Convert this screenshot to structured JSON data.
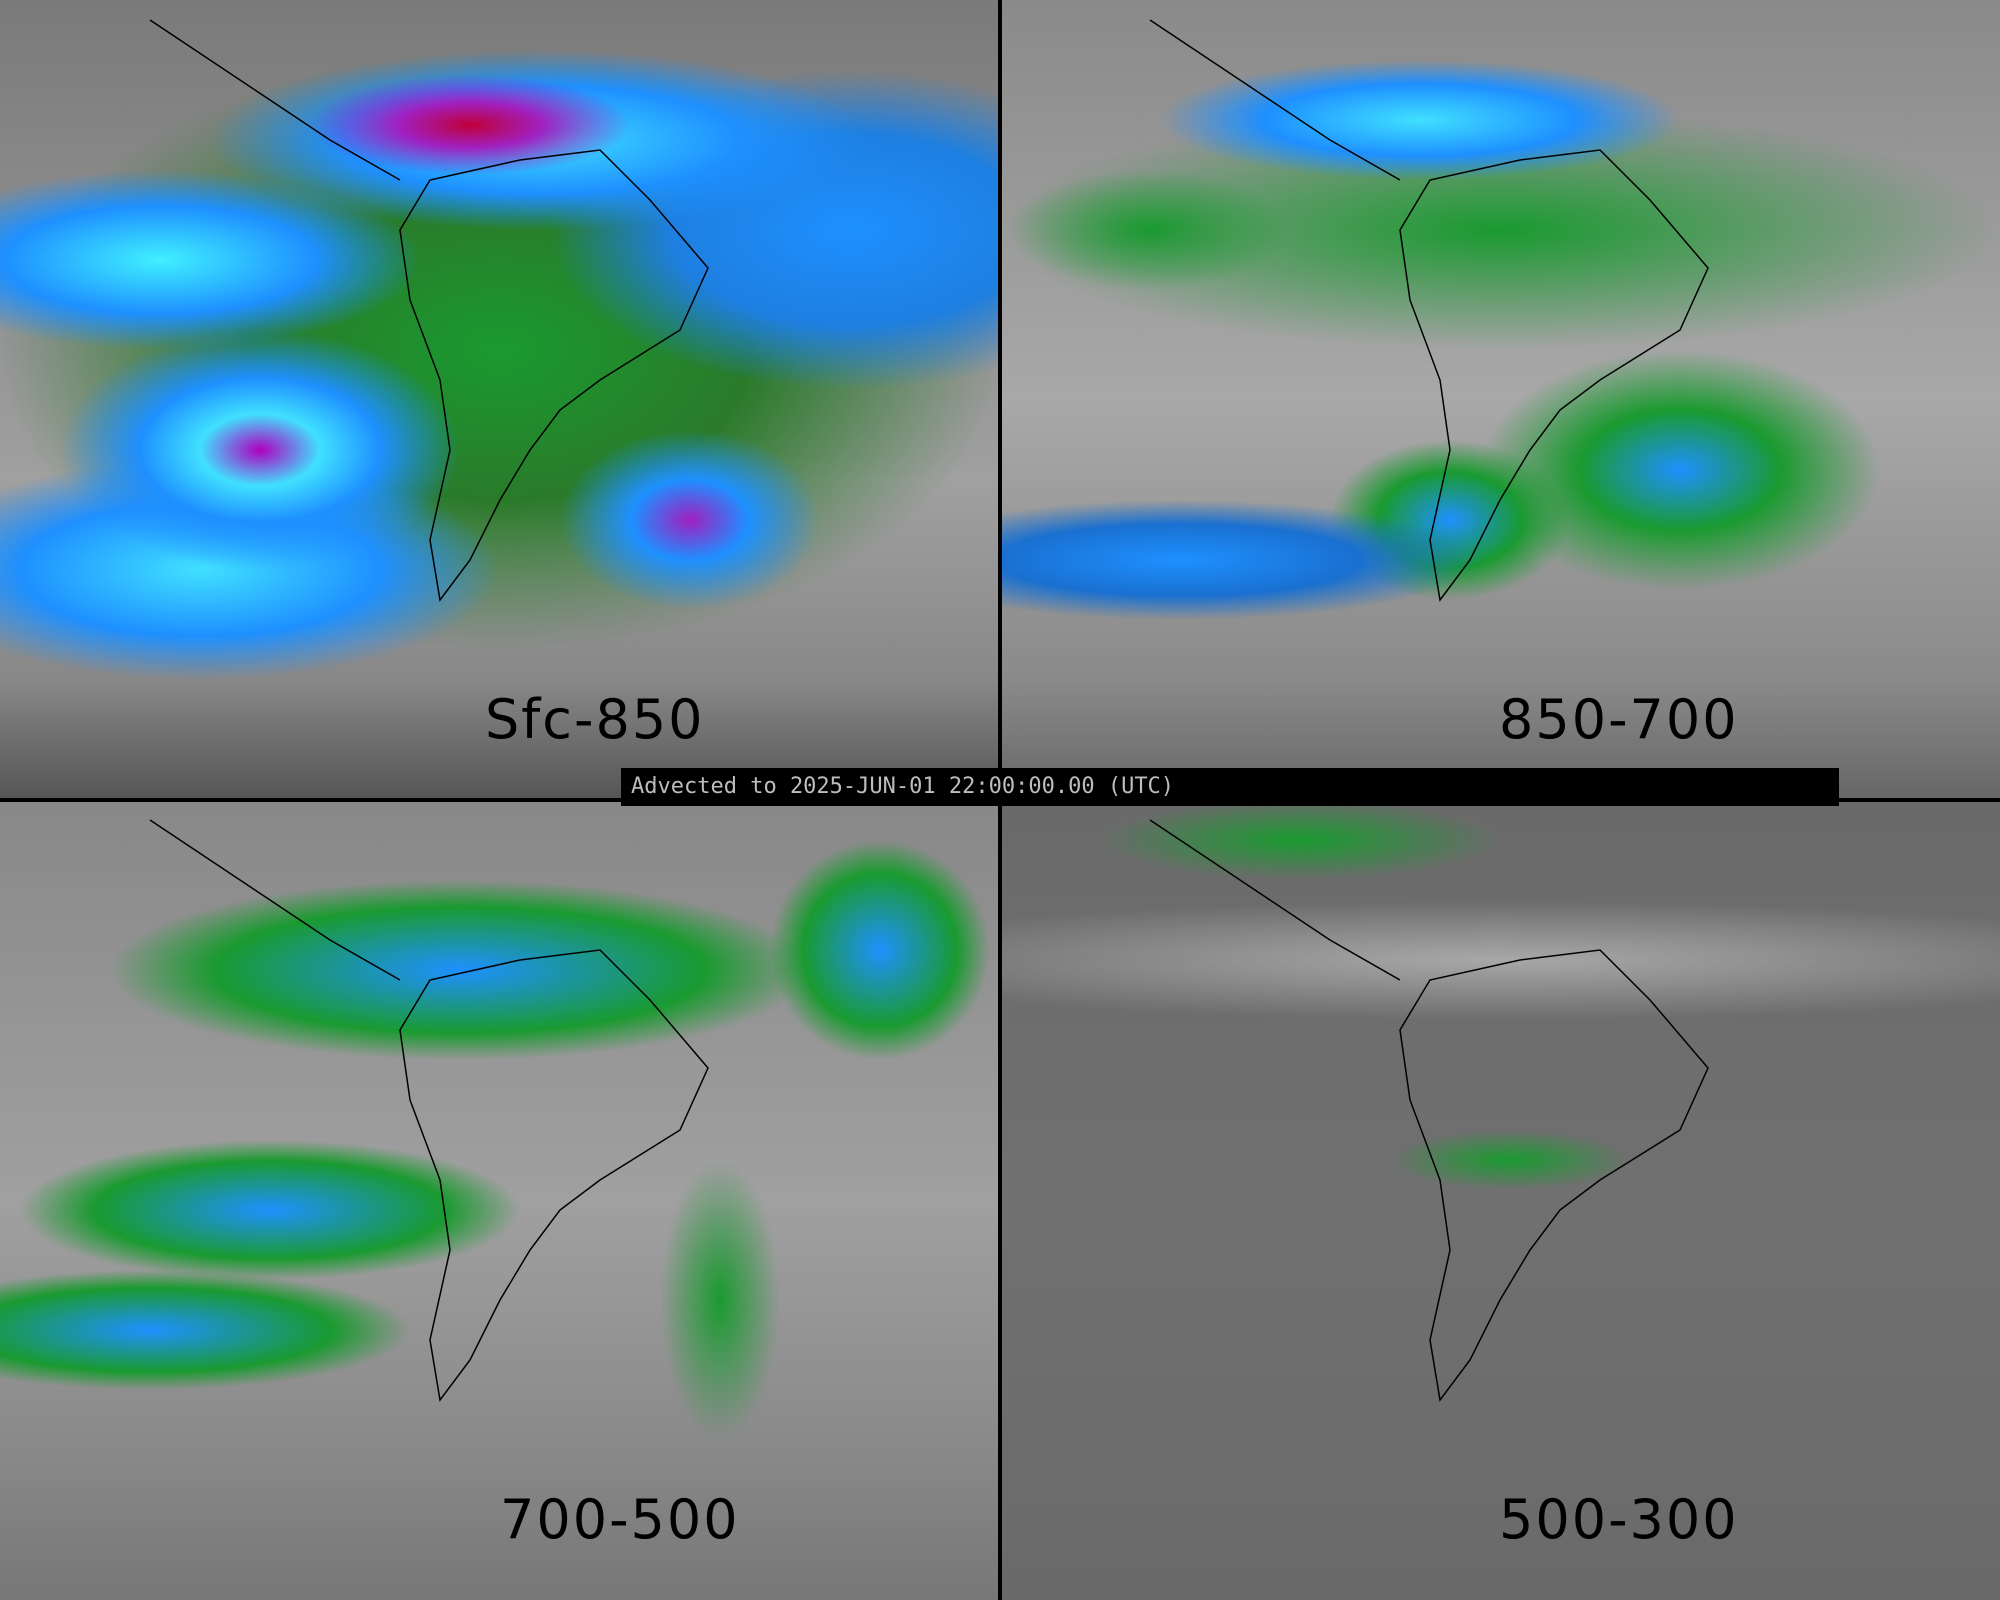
{
  "panels": [
    {
      "label": "Sfc-850"
    },
    {
      "label": "850-700"
    },
    {
      "label": "700-500"
    },
    {
      "label": "500-300"
    }
  ],
  "banner": {
    "text": "Advected to 2025-JUN-01 22:00:00.00 (UTC)"
  },
  "colors": {
    "low": "#808080",
    "mid": "#1a9a30",
    "high": "#1e90ff",
    "higher": "#40e0ff",
    "very_high": "#a020c0",
    "max": "#c0003a"
  }
}
